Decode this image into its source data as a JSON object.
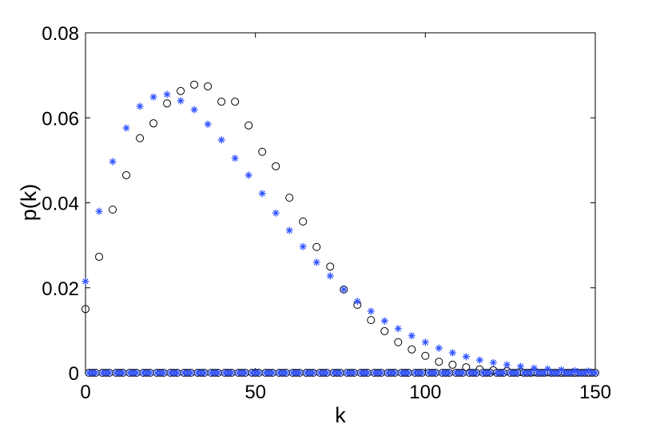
{
  "chart_data": {
    "type": "scatter",
    "title": "",
    "xlabel": "k",
    "ylabel": "p(k)",
    "xlim": [
      0,
      150
    ],
    "ylim": [
      0,
      0.08
    ],
    "xticks": [
      "0",
      "50",
      "100",
      "150"
    ],
    "yticks": [
      "0",
      "0.02",
      "0.04",
      "0.06",
      "0.08"
    ],
    "grid": false,
    "x_range": [
      0,
      150
    ],
    "series": [
      {
        "marker": "circle",
        "color": "#000000",
        "values": [
          0.015,
          0,
          0,
          0,
          0.0273,
          0,
          0,
          0,
          0.0384,
          0,
          0,
          0,
          0.0465,
          0,
          0,
          0,
          0.0552,
          0,
          0,
          0,
          0.0587,
          0,
          0,
          0,
          0.0634,
          0,
          0,
          0,
          0.0663,
          0,
          0,
          0,
          0.0678,
          0,
          0,
          0,
          0.0674,
          0,
          0,
          0,
          0.0638,
          0,
          0,
          0,
          0.0638,
          0,
          0,
          0,
          0.0582,
          0,
          0,
          0,
          0.052,
          0,
          0,
          0,
          0.0486,
          0,
          0,
          0,
          0.0412,
          0,
          0,
          0,
          0.0356,
          0,
          0,
          0,
          0.0296,
          0,
          0,
          0,
          0.025,
          0,
          0,
          0,
          0.0196,
          0,
          0,
          0,
          0.016,
          0,
          0,
          0,
          0.0124,
          0,
          0,
          0,
          0.0098,
          0,
          0,
          0,
          0.0072,
          0,
          0,
          0,
          0.0055,
          0,
          0,
          0,
          0.004,
          0,
          0,
          0,
          0.0026,
          0,
          0,
          0,
          0.0019,
          0,
          0,
          0,
          0.0013,
          0,
          0,
          0,
          0.0008,
          0,
          0,
          0,
          0.0006,
          0,
          0,
          0,
          0.0004,
          0,
          0,
          0,
          0.0002,
          0,
          0,
          0,
          0.0001,
          0,
          0,
          0,
          0.0001,
          0,
          0,
          0,
          0,
          0,
          0,
          0,
          0,
          0,
          0,
          0,
          0,
          0,
          0
        ]
      },
      {
        "marker": "star",
        "color": "#3355ff",
        "values": [
          0.0215,
          0,
          0,
          0,
          0.038,
          0,
          0,
          0,
          0.0497,
          0,
          0,
          0,
          0.0576,
          0,
          0,
          0,
          0.0627,
          0,
          0,
          0,
          0.0649,
          0,
          0,
          0,
          0.0655,
          0,
          0,
          0,
          0.064,
          0,
          0,
          0,
          0.0619,
          0,
          0,
          0,
          0.0585,
          0,
          0,
          0,
          0.0548,
          0,
          0,
          0,
          0.0505,
          0,
          0,
          0,
          0.0465,
          0,
          0,
          0,
          0.0422,
          0,
          0,
          0,
          0.0376,
          0,
          0,
          0,
          0.0335,
          0,
          0,
          0,
          0.0297,
          0,
          0,
          0,
          0.026,
          0,
          0,
          0,
          0.0228,
          0,
          0,
          0,
          0.0196,
          0,
          0,
          0,
          0.0168,
          0,
          0,
          0,
          0.0145,
          0,
          0,
          0,
          0.0122,
          0,
          0,
          0,
          0.0104,
          0,
          0,
          0,
          0.0087,
          0,
          0,
          0,
          0.0072,
          0,
          0,
          0,
          0.0058,
          0,
          0,
          0,
          0.0047,
          0,
          0,
          0,
          0.0038,
          0,
          0,
          0,
          0.003,
          0,
          0,
          0,
          0.0024,
          0,
          0,
          0,
          0.0019,
          0,
          0,
          0,
          0.0015,
          0,
          0,
          0,
          0.0011,
          0,
          0,
          0,
          0.0009,
          0,
          0,
          0,
          0.0007,
          0,
          0,
          0,
          0.0005,
          0,
          0,
          0,
          0.0004,
          0,
          0
        ]
      }
    ]
  }
}
